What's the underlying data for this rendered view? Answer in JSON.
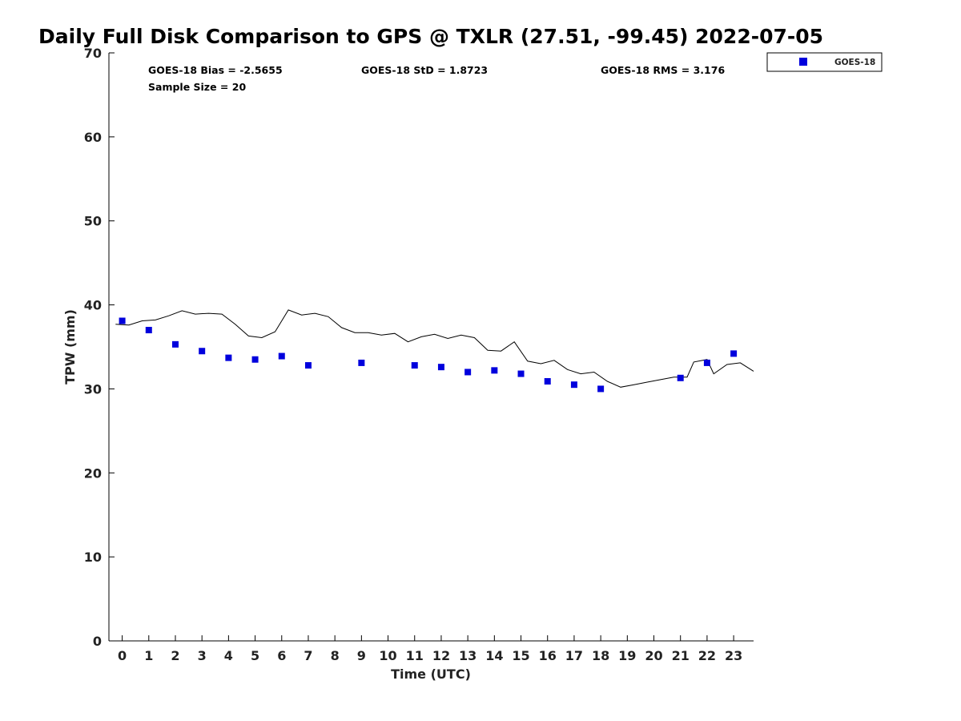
{
  "chart_data": {
    "type": "line+scatter",
    "title": "Daily Full Disk Comparison to GPS @ TXLR (27.51, -99.45) 2022-07-05",
    "xlabel": "Time (UTC)",
    "ylabel": "TPW (mm)",
    "xlim": [
      -0.5,
      23.75
    ],
    "ylim": [
      0,
      70
    ],
    "x_ticks": [
      0,
      1,
      2,
      3,
      4,
      5,
      6,
      7,
      8,
      9,
      10,
      11,
      12,
      13,
      14,
      15,
      16,
      17,
      18,
      19,
      20,
      21,
      22,
      23
    ],
    "y_ticks": [
      0,
      10,
      20,
      30,
      40,
      50,
      60,
      70
    ],
    "grid": false,
    "legend_position": "top-right, outside plot",
    "stats": {
      "bias": "GOES-18 Bias = -2.5655",
      "std": "GOES-18 StD = 1.8723",
      "rms": "GOES-18 RMS = 3.176",
      "sample_size": "Sample Size = 20"
    },
    "series": [
      {
        "name": "GOES-18",
        "style": "scatter",
        "marker": "square",
        "color": "#0000dd",
        "points": [
          [
            0,
            38.1
          ],
          [
            1,
            37.0
          ],
          [
            2,
            35.3
          ],
          [
            3,
            34.5
          ],
          [
            4,
            33.7
          ],
          [
            5,
            33.5
          ],
          [
            6,
            33.9
          ],
          [
            7,
            32.8
          ],
          [
            9,
            33.1
          ],
          [
            11,
            32.8
          ],
          [
            12,
            32.6
          ],
          [
            13,
            32.0
          ],
          [
            14,
            32.2
          ],
          [
            15,
            31.8
          ],
          [
            16,
            30.9
          ],
          [
            17,
            30.5
          ],
          [
            18,
            30.0
          ],
          [
            21,
            31.3
          ],
          [
            22,
            33.1
          ],
          [
            23,
            34.2
          ]
        ]
      },
      {
        "style": "line",
        "color": "#000000",
        "points": [
          [
            -0.25,
            37.7
          ],
          [
            0.25,
            37.6
          ],
          [
            0.75,
            38.1
          ],
          [
            1.25,
            38.2
          ],
          [
            1.75,
            38.7
          ],
          [
            2.25,
            39.3
          ],
          [
            2.75,
            38.9
          ],
          [
            3.25,
            39.0
          ],
          [
            3.75,
            38.9
          ],
          [
            4.25,
            37.7
          ],
          [
            4.75,
            36.3
          ],
          [
            5.25,
            36.1
          ],
          [
            5.75,
            36.8
          ],
          [
            6.25,
            39.4
          ],
          [
            6.75,
            38.8
          ],
          [
            7.25,
            39.0
          ],
          [
            7.75,
            38.6
          ],
          [
            8.25,
            37.3
          ],
          [
            8.75,
            36.7
          ],
          [
            9.25,
            36.7
          ],
          [
            9.75,
            36.4
          ],
          [
            10.25,
            36.6
          ],
          [
            10.75,
            35.6
          ],
          [
            11.25,
            36.2
          ],
          [
            11.75,
            36.5
          ],
          [
            12.25,
            36.0
          ],
          [
            12.75,
            36.4
          ],
          [
            13.25,
            36.1
          ],
          [
            13.75,
            34.6
          ],
          [
            14.25,
            34.5
          ],
          [
            14.75,
            35.6
          ],
          [
            15.25,
            33.3
          ],
          [
            15.75,
            33.0
          ],
          [
            16.25,
            33.4
          ],
          [
            16.75,
            32.3
          ],
          [
            17.25,
            31.8
          ],
          [
            17.75,
            32.0
          ],
          [
            18.25,
            30.9
          ],
          [
            18.75,
            30.2
          ],
          [
            19.25,
            30.5
          ],
          [
            19.75,
            30.8
          ],
          [
            20.25,
            31.1
          ],
          [
            20.75,
            31.4
          ],
          [
            21.25,
            31.4
          ],
          [
            21.5,
            33.2
          ],
          [
            22.0,
            33.5
          ],
          [
            22.25,
            31.8
          ],
          [
            22.75,
            32.9
          ],
          [
            23.25,
            33.1
          ],
          [
            23.75,
            32.1
          ]
        ]
      }
    ]
  }
}
